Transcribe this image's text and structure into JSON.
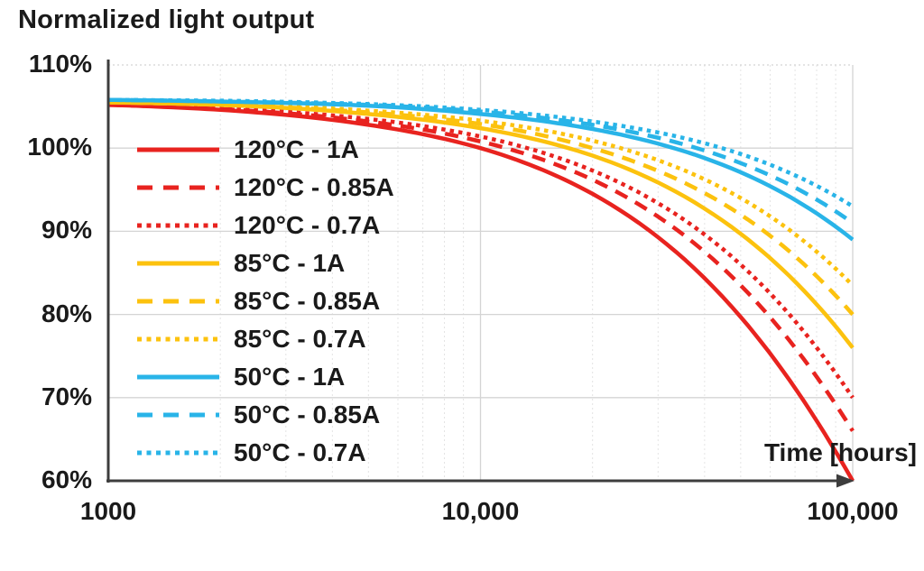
{
  "title": "Normalized light output",
  "x_axis_label": "Time [hours]",
  "colors": {
    "red_120c": "#e8231f",
    "yellow_85c": "#fcc20e",
    "blue_50c": "#29b4e8",
    "axis": "#3d3d3d",
    "grid_major": "#d4d4d4",
    "grid_minor": "#e4e4e4",
    "text": "#1a1a1a",
    "background": "#ffffff"
  },
  "chart_data": {
    "type": "line",
    "title": "Normalized light output",
    "xlabel": "Time [hours]",
    "ylabel": "Normalized light output",
    "x_scale": "log",
    "xlim": [
      1000,
      100000
    ],
    "ylim": [
      60,
      110
    ],
    "grid": true,
    "legend_position": "inside-top-left",
    "x_ticks": [
      "1000",
      "10,000",
      "100,000"
    ],
    "x_tick_values": [
      1000,
      10000,
      100000
    ],
    "y_ticks": [
      "110%",
      "100%",
      "90%",
      "80%",
      "70%",
      "60%"
    ],
    "y_tick_values": [
      110,
      100,
      90,
      80,
      70,
      60
    ],
    "x_sample_hours": [
      1000,
      2000,
      5000,
      10000,
      20000,
      50000,
      100000
    ],
    "series": [
      {
        "name": "120°C - 1A",
        "color": "#e8231f",
        "style": "solid",
        "values": [
          105.2,
          104.6,
          102.8,
          100.0,
          94.5,
          79.7,
          60.0
        ]
      },
      {
        "name": "120°C - 0.85A",
        "color": "#e8231f",
        "style": "dashed",
        "values": [
          105.2,
          104.7,
          103.2,
          100.8,
          96.2,
          83.5,
          66.0
        ]
      },
      {
        "name": "120°C - 0.7A",
        "color": "#e8231f",
        "style": "dotted",
        "values": [
          105.2,
          104.8,
          103.5,
          101.4,
          97.3,
          86.0,
          70.0
        ]
      },
      {
        "name": "85°C - 1A",
        "color": "#fcc20e",
        "style": "solid",
        "values": [
          105.5,
          105.2,
          104.1,
          102.4,
          99.1,
          89.7,
          76.0
        ]
      },
      {
        "name": "85°C - 0.85A",
        "color": "#fcc20e",
        "style": "dashed",
        "values": [
          105.5,
          105.2,
          104.3,
          102.9,
          100.0,
          92.0,
          80.0
        ]
      },
      {
        "name": "85°C - 0.7A",
        "color": "#fcc20e",
        "style": "dotted",
        "values": [
          105.5,
          105.3,
          104.5,
          103.3,
          100.9,
          94.0,
          83.5
        ]
      },
      {
        "name": "50°C - 1A",
        "color": "#29b4e8",
        "style": "solid",
        "values": [
          105.8,
          105.6,
          105.1,
          104.1,
          102.3,
          97.1,
          89.0
        ]
      },
      {
        "name": "50°C - 0.85A",
        "color": "#29b4e8",
        "style": "dashed",
        "values": [
          105.8,
          105.6,
          105.2,
          104.4,
          102.8,
          98.2,
          91.0
        ]
      },
      {
        "name": "50°C - 0.7A",
        "color": "#29b4e8",
        "style": "dotted",
        "values": [
          105.8,
          105.7,
          105.3,
          104.6,
          103.2,
          99.3,
          93.0
        ]
      }
    ]
  }
}
